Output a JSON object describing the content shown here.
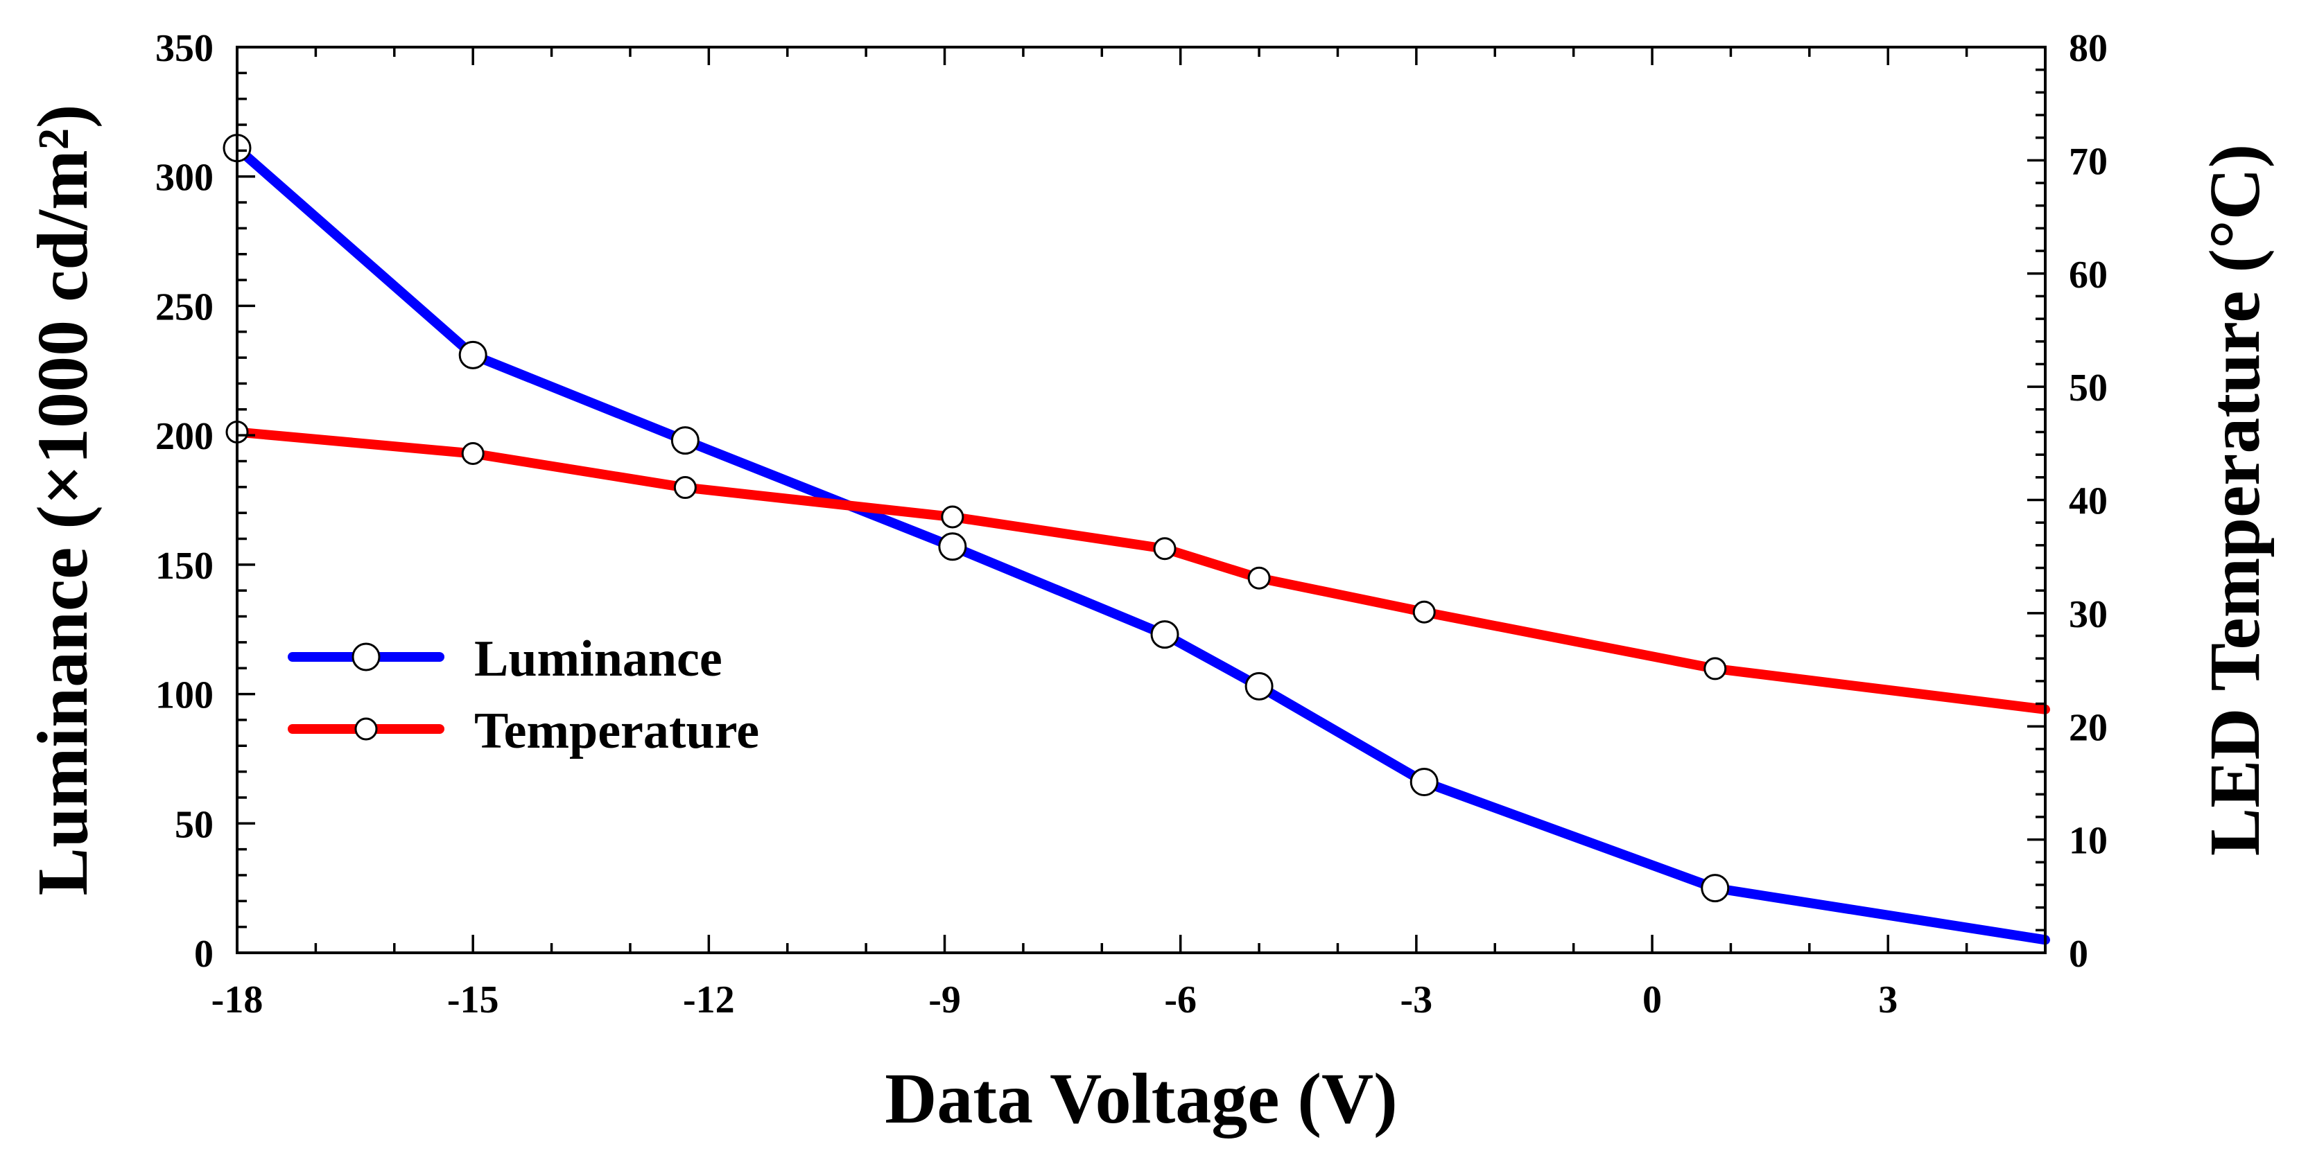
{
  "chart_data": {
    "type": "line",
    "title": "",
    "xlabel": "Data Voltage (V)",
    "ylabel_left": "Luminance (×1000 cd/m²)",
    "ylabel_right": "LED Temperature (°C)",
    "xlim": [
      -18,
      5
    ],
    "ylim_left": [
      0,
      350
    ],
    "ylim_right": [
      0,
      80
    ],
    "x_ticks": [
      -18,
      -15,
      -12,
      -9,
      -6,
      -3,
      0,
      3
    ],
    "y_left_ticks": [
      0,
      50,
      100,
      150,
      200,
      250,
      300,
      350
    ],
    "y_right_ticks": [
      0,
      10,
      20,
      30,
      40,
      50,
      60,
      70,
      80
    ],
    "grid": false,
    "legend_position": "middle-left",
    "series": [
      {
        "name": "Luminance",
        "axis": "left",
        "color": "#0000ff",
        "x": [
          -18,
          -15,
          -12.3,
          -8.9,
          -6.2,
          -5,
          -2.9,
          0.8,
          5
        ],
        "values": [
          311,
          231,
          198,
          157,
          123,
          103,
          66,
          25,
          5
        ]
      },
      {
        "name": "Temperature",
        "axis": "right",
        "color": "#ff0000",
        "x": [
          -18,
          -15,
          -12.3,
          -8.9,
          -6.2,
          -5,
          -2.9,
          0.8,
          5
        ],
        "values": [
          46,
          44.1,
          41.1,
          38.5,
          35.7,
          33.1,
          30.1,
          25.1,
          21.5
        ]
      }
    ],
    "legend": [
      "Luminance",
      "Temperature"
    ]
  }
}
